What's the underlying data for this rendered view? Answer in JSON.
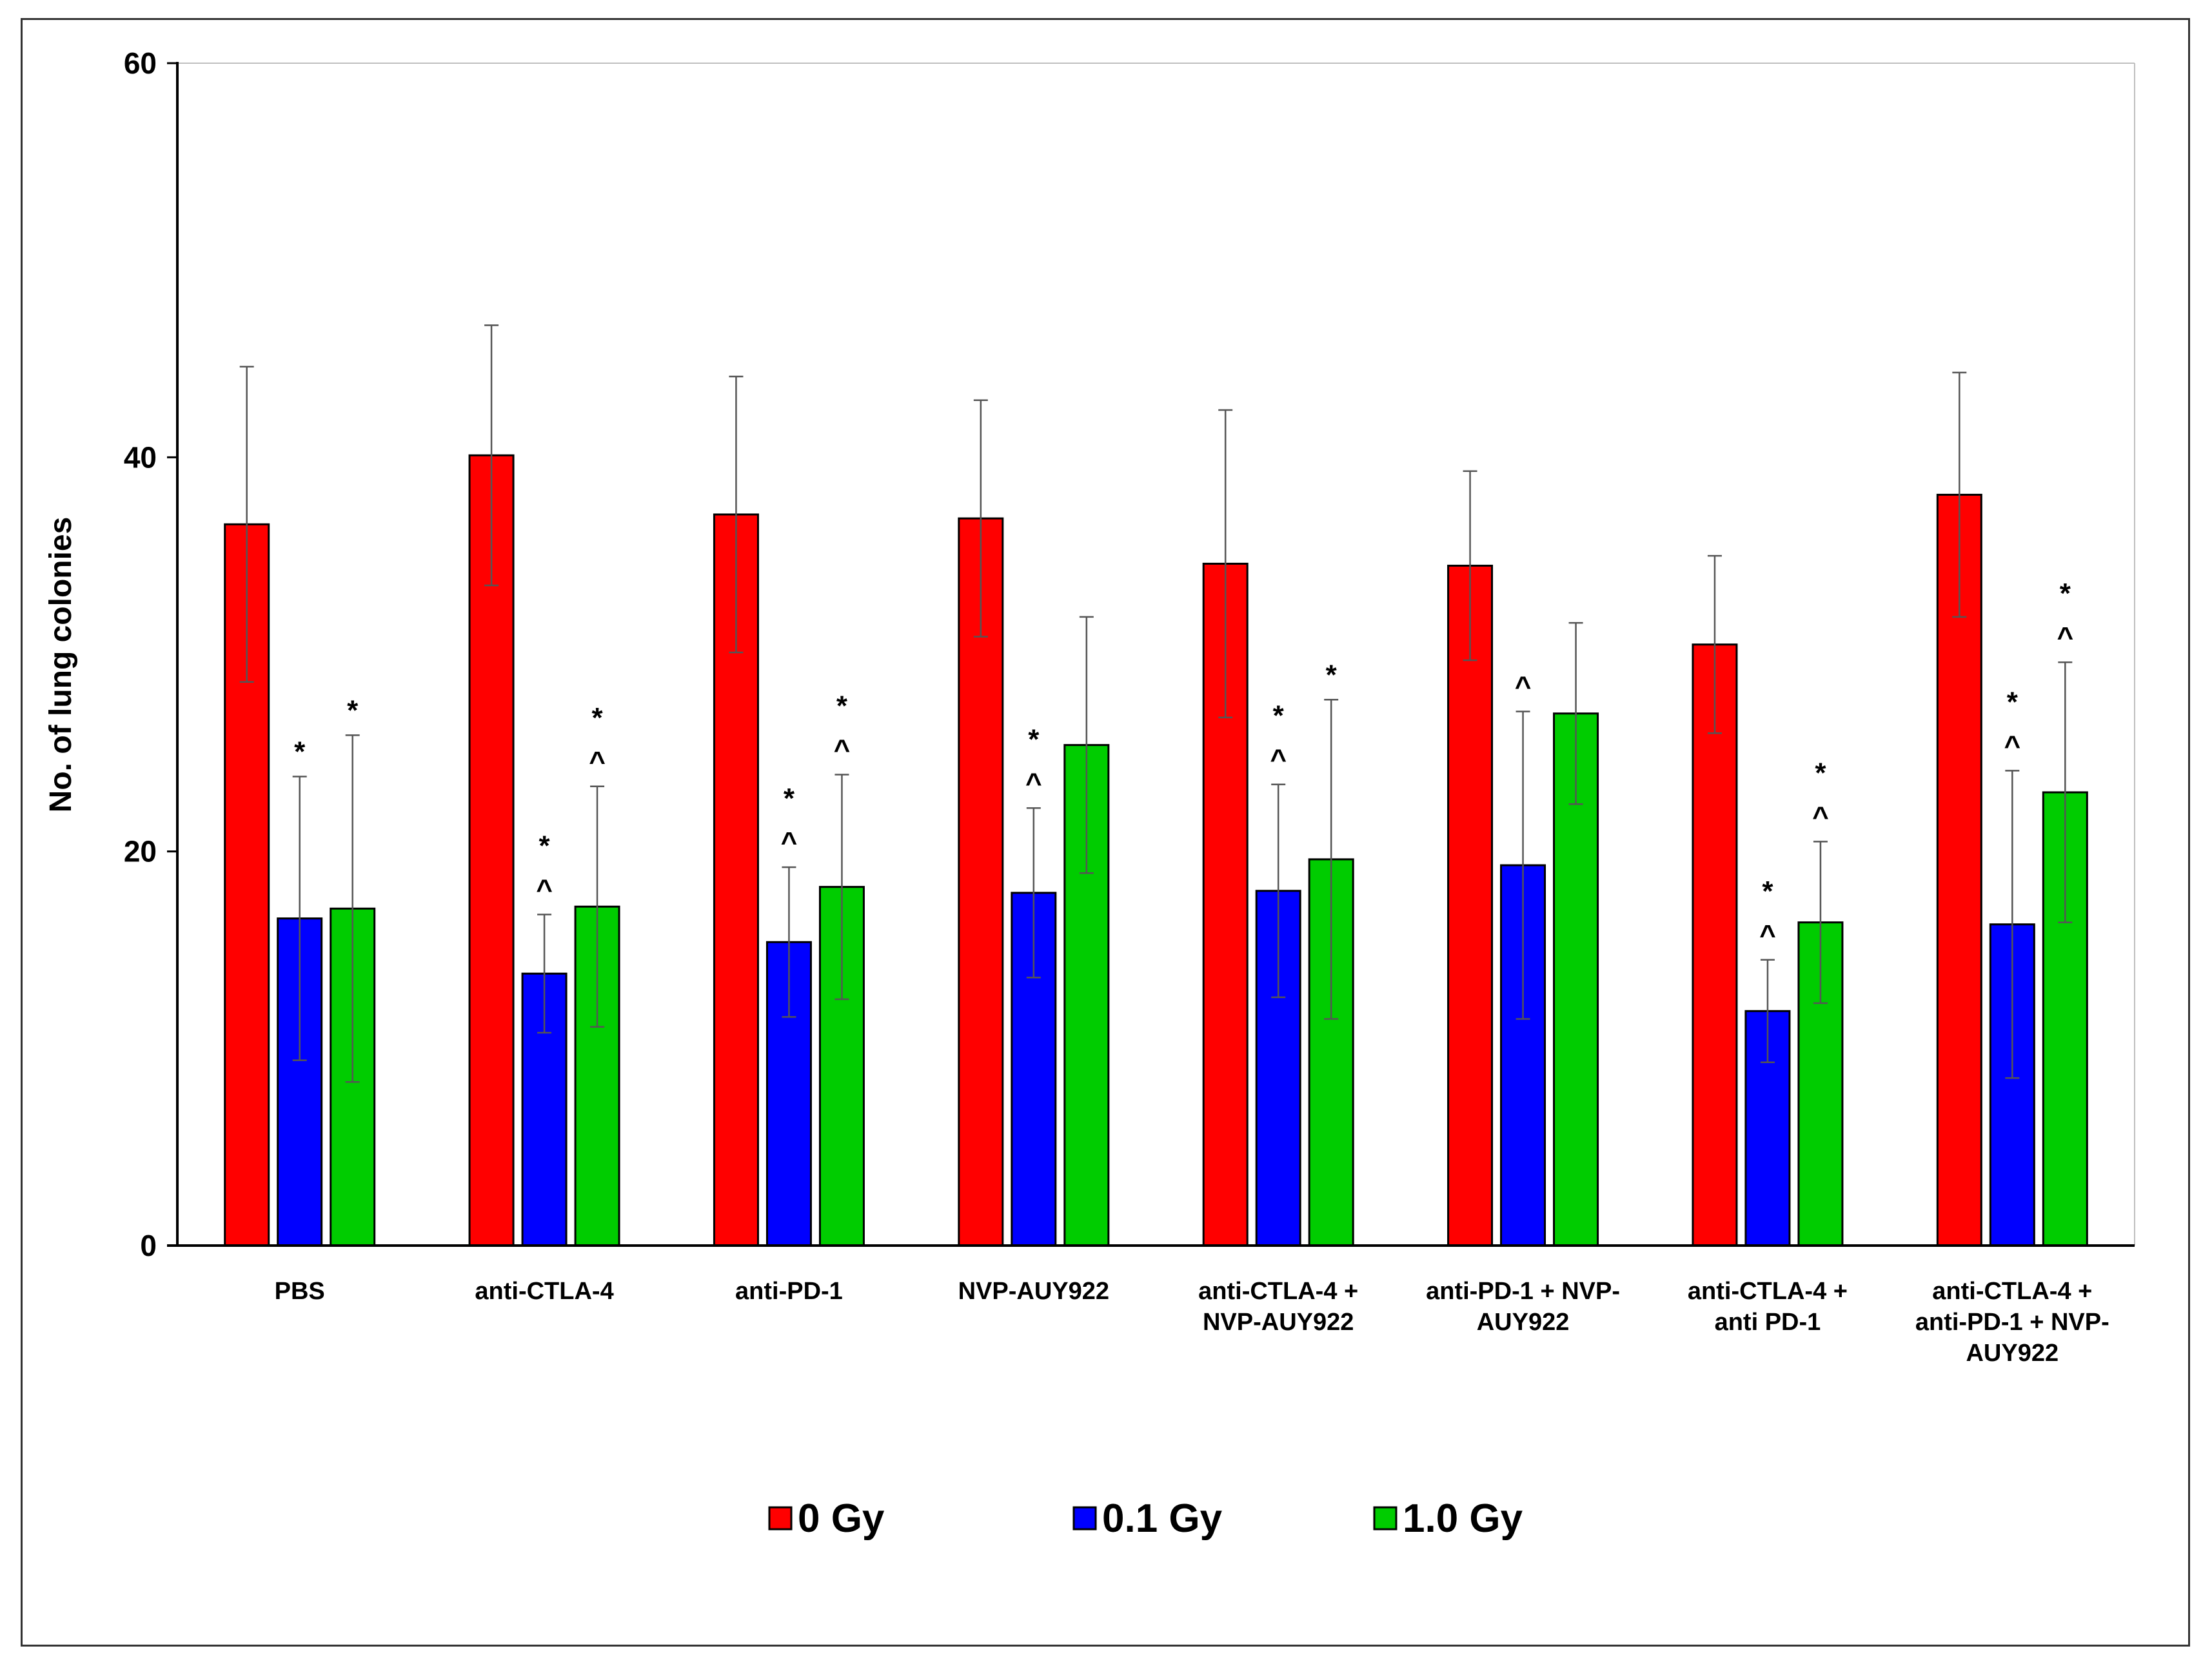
{
  "chart_data": {
    "type": "bar",
    "title": "",
    "xlabel": "",
    "ylabel": "No. of lung colonies",
    "ylim": [
      0,
      60
    ],
    "yticks": [
      "0",
      "20",
      "40",
      "60"
    ],
    "grid": false,
    "legend_position": "bottom",
    "categories": [
      [
        "PBS"
      ],
      [
        "anti-CTLA-4"
      ],
      [
        "anti-PD-1"
      ],
      [
        "NVP-AUY922"
      ],
      [
        "anti-CTLA-4 +",
        "NVP-AUY922"
      ],
      [
        "anti-PD-1 + NVP-",
        "AUY922"
      ],
      [
        "anti-CTLA-4 +",
        "anti PD-1"
      ],
      [
        "anti-CTLA-4 +",
        "anti-PD-1 + NVP-",
        "AUY922"
      ]
    ],
    "series": [
      {
        "name": "0 Gy",
        "color": "#ff0000",
        "values": [
          36.6,
          40.1,
          37.1,
          36.9,
          34.6,
          34.5,
          30.5,
          38.1
        ],
        "errors": [
          8.0,
          6.6,
          7.0,
          6.0,
          7.8,
          4.8,
          4.5,
          6.2
        ],
        "annotations": [
          [],
          [],
          [],
          [],
          [],
          [],
          [],
          []
        ]
      },
      {
        "name": "0.1 Gy",
        "color": "#0000ff",
        "values": [
          16.6,
          13.8,
          15.4,
          17.9,
          18.0,
          19.3,
          11.9,
          16.3
        ],
        "errors": [
          7.2,
          3.0,
          3.8,
          4.3,
          5.4,
          7.8,
          2.6,
          7.8
        ],
        "annotations": [
          [
            "*"
          ],
          [
            "*",
            "^"
          ],
          [
            "*",
            "^"
          ],
          [
            "*",
            "^"
          ],
          [
            "*",
            "^"
          ],
          [
            "^"
          ],
          [
            "*",
            "^"
          ],
          [
            "*",
            "^"
          ]
        ]
      },
      {
        "name": "1.0 Gy",
        "color": "#00cc00",
        "values": [
          17.1,
          17.2,
          18.2,
          25.4,
          19.6,
          27.0,
          16.4,
          23.0
        ],
        "errors": [
          8.8,
          6.1,
          5.7,
          6.5,
          8.1,
          4.6,
          4.1,
          6.6
        ],
        "annotations": [
          [
            "*"
          ],
          [
            "*",
            "^"
          ],
          [
            "*",
            "^"
          ],
          [],
          [
            "*"
          ],
          [],
          [
            "*",
            "^"
          ],
          [
            "*",
            "^"
          ]
        ]
      }
    ]
  }
}
